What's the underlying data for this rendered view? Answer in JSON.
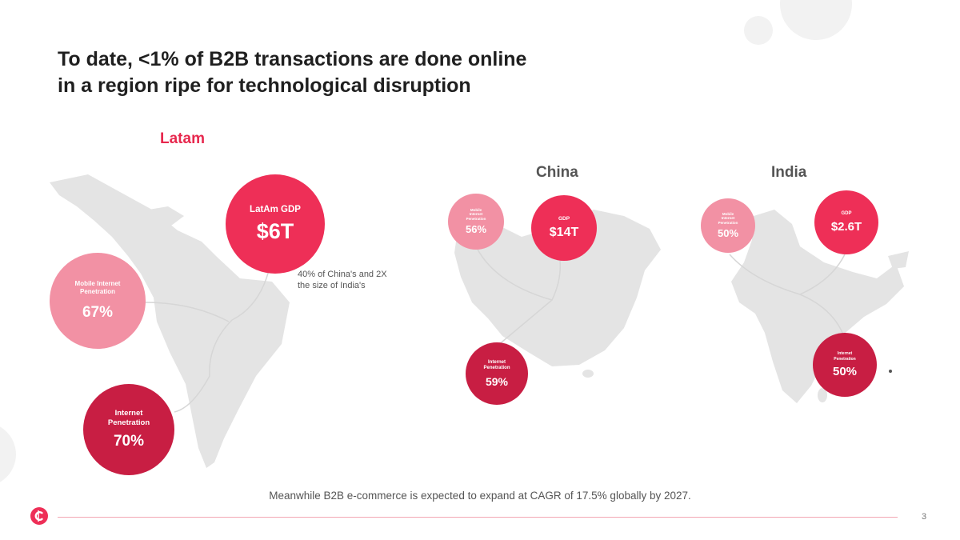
{
  "title": {
    "line1": "To date, <1% of B2B transactions are done online",
    "line2": "in a region ripe for technological disruption"
  },
  "regions": {
    "latam": {
      "label": "Latam",
      "gdp": {
        "label": "LatAm GDP",
        "value": "$6T"
      },
      "mobile": {
        "label_line1": "Mobile Internet",
        "label_line2": "Penetration",
        "value": "67%"
      },
      "internet": {
        "label_line1": "Internet",
        "label_line2": "Penetration",
        "value": "70%"
      },
      "note_line1": "40% of China's and 2X",
      "note_line2": "the size of India's"
    },
    "china": {
      "label": "China",
      "gdp": {
        "label": "GDP",
        "value": "$14T"
      },
      "mobile": {
        "label_line1": "Mobile",
        "label_line2": "Internet",
        "label_line3": "Penetration",
        "value": "56%"
      },
      "internet": {
        "label_line1": "Internet",
        "label_line2": "Penetration",
        "value": "59%"
      }
    },
    "india": {
      "label": "India",
      "gdp": {
        "label": "GDP",
        "value": "$2.6T"
      },
      "mobile": {
        "label_line1": "Mobile",
        "label_line2": "Internet",
        "label_line3": "Penetration",
        "value": "50%"
      },
      "internet": {
        "label_line1": "Internet",
        "label_line2": "Penetration",
        "value": "50%"
      }
    }
  },
  "footer": {
    "note": "Meanwhile B2B e-commerce is expected to expand at CAGR of 17.5% globally by 2027.",
    "page_number": "3"
  },
  "colors": {
    "gdp": "#ee2f57",
    "mobile": "#f291a4",
    "internet": "#c81e43",
    "latam_label": "#e7284e",
    "region_label": "#555555",
    "map": "#e4e4e4"
  }
}
